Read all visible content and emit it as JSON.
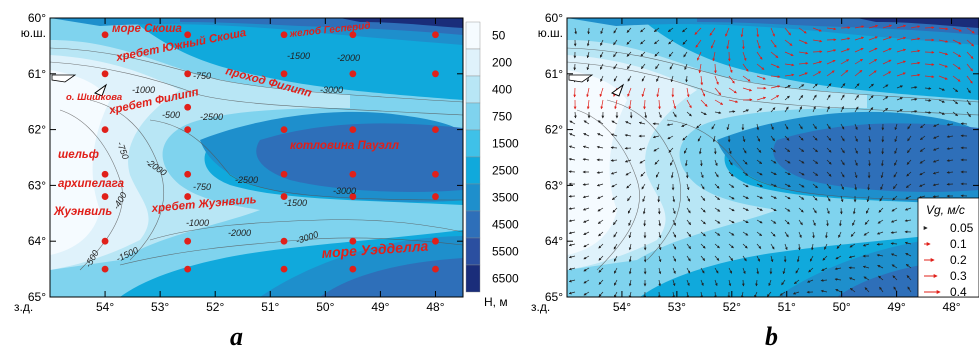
{
  "chart_data": [
    {
      "type": "heatmap",
      "panel_label": "a",
      "xlim": [
        55.0,
        47.5
      ],
      "ylim": [
        60.0,
        65.0
      ],
      "x_ticks": [
        "54°",
        "53°",
        "52°",
        "51°",
        "50°",
        "49°",
        "48°"
      ],
      "x_tick_values": [
        54,
        53,
        52,
        51,
        50,
        49,
        48
      ],
      "x_prefix": "з.д.",
      "y_ticks": [
        "60°",
        "61°",
        "62°",
        "63°",
        "64°",
        "65°"
      ],
      "y_tick_values": [
        60,
        61,
        62,
        63,
        64,
        65
      ],
      "y_suffix": "ю.ш.",
      "colorbar": {
        "levels": [
          "50",
          "200",
          "400",
          "750",
          "1500",
          "2500",
          "3500",
          "4500",
          "5500",
          "6500"
        ],
        "unit_label": "H, м",
        "colors": [
          "#f5fbff",
          "#dff2fb",
          "#b8e6f5",
          "#7fd3ee",
          "#3fc1e8",
          "#10a9dc",
          "#1e8fcc",
          "#2e6fb9",
          "#2b4fa0",
          "#1a2d7a"
        ]
      },
      "place_names": [
        "море Скоша",
        "хребет Южный Скоша",
        "желоб Гесперид",
        "о. Шишкова",
        "хребет Филипп",
        "проход Филипп",
        "котловина Пауэлл",
        "шельф",
        "архипелага",
        "Жуэнвиль",
        "хребет Жуэнвиль",
        "море Уэдделла"
      ],
      "contour_labels": [
        "-1000",
        "-750",
        "-1500",
        "-2000",
        "-500",
        "-2500",
        "-3000",
        "-750",
        "-2000",
        "-2500",
        "-750",
        "-400",
        "-1000",
        "-1500",
        "-3000",
        "-500",
        "-1500",
        "-2000",
        "-3000"
      ],
      "stations": [
        {
          "lon": 54.0,
          "lat": 60.3
        },
        {
          "lon": 52.5,
          "lat": 60.3
        },
        {
          "lon": 50.75,
          "lat": 60.3
        },
        {
          "lon": 49.5,
          "lat": 60.3
        },
        {
          "lon": 48.0,
          "lat": 60.3
        },
        {
          "lon": 54.0,
          "lat": 61.0
        },
        {
          "lon": 52.5,
          "lat": 61.0
        },
        {
          "lon": 50.75,
          "lat": 61.0
        },
        {
          "lon": 49.5,
          "lat": 61.0
        },
        {
          "lon": 48.0,
          "lat": 61.0
        },
        {
          "lon": 52.5,
          "lat": 61.6
        },
        {
          "lon": 54.0,
          "lat": 62.0
        },
        {
          "lon": 52.5,
          "lat": 62.0
        },
        {
          "lon": 50.75,
          "lat": 62.0
        },
        {
          "lon": 49.5,
          "lat": 62.0
        },
        {
          "lon": 48.0,
          "lat": 62.0
        },
        {
          "lon": 54.0,
          "lat": 62.8
        },
        {
          "lon": 52.5,
          "lat": 62.8
        },
        {
          "lon": 50.75,
          "lat": 62.8
        },
        {
          "lon": 49.5,
          "lat": 62.8
        },
        {
          "lon": 48.0,
          "lat": 62.8
        },
        {
          "lon": 54.0,
          "lat": 63.2
        },
        {
          "lon": 52.5,
          "lat": 63.2
        },
        {
          "lon": 50.75,
          "lat": 63.2
        },
        {
          "lon": 49.5,
          "lat": 63.2
        },
        {
          "lon": 48.0,
          "lat": 63.2
        },
        {
          "lon": 54.0,
          "lat": 64.0
        },
        {
          "lon": 52.5,
          "lat": 64.0
        },
        {
          "lon": 50.75,
          "lat": 64.0
        },
        {
          "lon": 49.5,
          "lat": 64.0
        },
        {
          "lon": 48.0,
          "lat": 64.0
        },
        {
          "lon": 54.0,
          "lat": 64.5
        },
        {
          "lon": 52.5,
          "lat": 64.5
        },
        {
          "lon": 50.75,
          "lat": 64.5
        },
        {
          "lon": 49.5,
          "lat": 64.5
        },
        {
          "lon": 48.0,
          "lat": 64.5
        }
      ],
      "station_color": "#e0201a"
    },
    {
      "type": "heatmap",
      "panel_label": "b",
      "xlim": [
        55.0,
        47.5
      ],
      "ylim": [
        60.0,
        65.0
      ],
      "x_ticks": [
        "54°",
        "53°",
        "52°",
        "51°",
        "50°",
        "49°",
        "48°"
      ],
      "x_tick_values": [
        54,
        53,
        52,
        51,
        50,
        49,
        48
      ],
      "x_prefix": "з.д.",
      "y_ticks": [
        "60°",
        "61°",
        "62°",
        "63°",
        "64°",
        "65°"
      ],
      "y_tick_values": [
        60,
        61,
        62,
        63,
        64,
        65
      ],
      "y_suffix": "ю.ш.",
      "vector_legend": {
        "title": "Vg,  м/с",
        "values": [
          "0.05",
          "0.1",
          "0.2",
          "0.3",
          "0.4"
        ],
        "colors": [
          "#000000",
          "#e0201a",
          "#e0201a",
          "#e0201a",
          "#e0201a"
        ]
      }
    }
  ]
}
